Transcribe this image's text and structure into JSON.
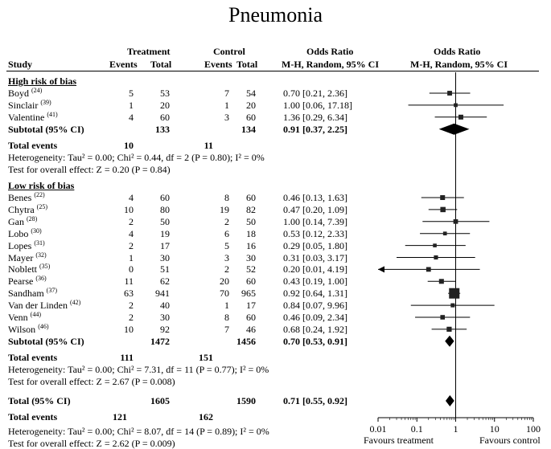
{
  "title": "Pneumonia",
  "headers": {
    "study": "Study",
    "treatment": "Treatment",
    "control": "Control",
    "events": "Events",
    "total": "Total",
    "or_col1": "Odds Ratio",
    "or_sub1": "M-H, Random, 95% CI",
    "or_col2": "Odds Ratio",
    "or_sub2": "M-H, Random, 95% CI"
  },
  "groups": [
    {
      "label": "High risk of bias",
      "studies": [
        {
          "name": "Boyd",
          "ref": "(24)",
          "te": "5",
          "tt": "53",
          "ce": "7",
          "ct": "54",
          "ci": "0.70 [0.21, 2.36]"
        },
        {
          "name": "Sinclair",
          "ref": "(39)",
          "te": "1",
          "tt": "20",
          "ce": "1",
          "ct": "20",
          "ci": "1.00 [0.06, 17.18]"
        },
        {
          "name": "Valentine",
          "ref": "(41)",
          "te": "4",
          "tt": "60",
          "ce": "3",
          "ct": "60",
          "ci": "1.36 [0.29, 6.34]"
        }
      ],
      "subtotal": {
        "label": "Subtotal (95% CI)",
        "tt": "133",
        "ct": "134",
        "ci": "0.91 [0.37, 2.25]"
      },
      "total_events": {
        "label": "Total events",
        "te": "10",
        "ce": "11"
      },
      "heterogeneity": "Heterogeneity: Tau² = 0.00; Chi² = 0.44, df = 2 (P = 0.80); I² = 0%",
      "effect": "Test for overall effect: Z = 0.20 (P = 0.84)"
    },
    {
      "label": "Low risk of bias",
      "studies": [
        {
          "name": "Benes",
          "ref": "(22)",
          "te": "4",
          "tt": "60",
          "ce": "8",
          "ct": "60",
          "ci": "0.46 [0.13, 1.63]"
        },
        {
          "name": "Chytra",
          "ref": "(25)",
          "te": "10",
          "tt": "80",
          "ce": "19",
          "ct": "82",
          "ci": "0.47 [0.20, 1.09]"
        },
        {
          "name": "Gan",
          "ref": "(28)",
          "te": "2",
          "tt": "50",
          "ce": "2",
          "ct": "50",
          "ci": "1.00 [0.14, 7.39]"
        },
        {
          "name": "Lobo",
          "ref": "(30)",
          "te": "4",
          "tt": "19",
          "ce": "6",
          "ct": "18",
          "ci": "0.53 [0.12, 2.33]"
        },
        {
          "name": "Lopes",
          "ref": "(31)",
          "te": "2",
          "tt": "17",
          "ce": "5",
          "ct": "16",
          "ci": "0.29 [0.05, 1.80]"
        },
        {
          "name": "Mayer",
          "ref": "(32)",
          "te": "1",
          "tt": "30",
          "ce": "3",
          "ct": "30",
          "ci": "0.31 [0.03, 3.17]"
        },
        {
          "name": "Noblett",
          "ref": "(35)",
          "te": "0",
          "tt": "51",
          "ce": "2",
          "ct": "52",
          "ci": "0.20 [0.01, 4.19]"
        },
        {
          "name": "Pearse",
          "ref": "(36)",
          "te": "11",
          "tt": "62",
          "ce": "20",
          "ct": "60",
          "ci": "0.43 [0.19, 1.00]"
        },
        {
          "name": "Sandham",
          "ref": "(37)",
          "te": "63",
          "tt": "941",
          "ce": "70",
          "ct": "965",
          "ci": "0.92 [0.64, 1.31]"
        },
        {
          "name": "Van der Linden",
          "ref": "(42)",
          "te": "2",
          "tt": "40",
          "ce": "1",
          "ct": "17",
          "ci": "0.84 [0.07, 9.96]"
        },
        {
          "name": "Venn",
          "ref": "(44)",
          "te": "2",
          "tt": "30",
          "ce": "8",
          "ct": "60",
          "ci": "0.46 [0.09, 2.34]"
        },
        {
          "name": "Wilson",
          "ref": "(46)",
          "te": "10",
          "tt": "92",
          "ce": "7",
          "ct": "46",
          "ci": "0.68 [0.24, 1.92]"
        }
      ],
      "subtotal": {
        "label": "Subtotal (95% CI)",
        "tt": "1472",
        "ct": "1456",
        "ci": "0.70 [0.53, 0.91]"
      },
      "total_events": {
        "label": "Total events",
        "te": "111",
        "ce": "151"
      },
      "heterogeneity": "Heterogeneity: Tau² = 0.00; Chi² = 7.31, df = 11 (P = 0.77); I² = 0%",
      "effect": "Test for overall effect: Z = 2.67 (P = 0.008)"
    }
  ],
  "overall": {
    "label": "Total (95% CI)",
    "tt": "1605",
    "ct": "1590",
    "ci": "0.71 [0.55, 0.92]",
    "events_label": "Total events",
    "te": "121",
    "ce": "162",
    "heterogeneity": "Heterogeneity: Tau² = 0.00; Chi² = 8.07, df = 14 (P = 0.89); I² = 0%",
    "effect": "Test for overall effect: Z = 2.62 (P = 0.009)"
  },
  "footer": {
    "favours_left": "Favours  treatment",
    "favours_right": "Favours control"
  },
  "chart_data": {
    "type": "forest",
    "scale": "log",
    "xlim": [
      0.01,
      100
    ],
    "ticks": [
      0.01,
      0.1,
      1,
      10,
      100
    ],
    "tick_labels": [
      "0.01",
      "0.1",
      "1",
      "10",
      "100"
    ],
    "reference_line": 1,
    "series": [
      {
        "name": "High risk of bias",
        "points": [
          {
            "study": "Boyd",
            "or": 0.7,
            "lo": 0.21,
            "hi": 2.36
          },
          {
            "study": "Sinclair",
            "or": 1.0,
            "lo": 0.06,
            "hi": 17.18
          },
          {
            "study": "Valentine",
            "or": 1.36,
            "lo": 0.29,
            "hi": 6.34
          }
        ],
        "subtotal": {
          "or": 0.91,
          "lo": 0.37,
          "hi": 2.25
        }
      },
      {
        "name": "Low risk of bias",
        "points": [
          {
            "study": "Benes",
            "or": 0.46,
            "lo": 0.13,
            "hi": 1.63
          },
          {
            "study": "Chytra",
            "or": 0.47,
            "lo": 0.2,
            "hi": 1.09
          },
          {
            "study": "Gan",
            "or": 1.0,
            "lo": 0.14,
            "hi": 7.39
          },
          {
            "study": "Lobo",
            "or": 0.53,
            "lo": 0.12,
            "hi": 2.33
          },
          {
            "study": "Lopes",
            "or": 0.29,
            "lo": 0.05,
            "hi": 1.8
          },
          {
            "study": "Mayer",
            "or": 0.31,
            "lo": 0.03,
            "hi": 3.17
          },
          {
            "study": "Noblett",
            "or": 0.2,
            "lo": 0.01,
            "hi": 4.19
          },
          {
            "study": "Pearse",
            "or": 0.43,
            "lo": 0.19,
            "hi": 1.0
          },
          {
            "study": "Sandham",
            "or": 0.92,
            "lo": 0.64,
            "hi": 1.31
          },
          {
            "study": "Van der Linden",
            "or": 0.84,
            "lo": 0.07,
            "hi": 9.96
          },
          {
            "study": "Venn",
            "or": 0.46,
            "lo": 0.09,
            "hi": 2.34
          },
          {
            "study": "Wilson",
            "or": 0.68,
            "lo": 0.24,
            "hi": 1.92
          }
        ],
        "subtotal": {
          "or": 0.7,
          "lo": 0.53,
          "hi": 0.91
        }
      }
    ],
    "overall": {
      "or": 0.71,
      "lo": 0.55,
      "hi": 0.92
    }
  }
}
